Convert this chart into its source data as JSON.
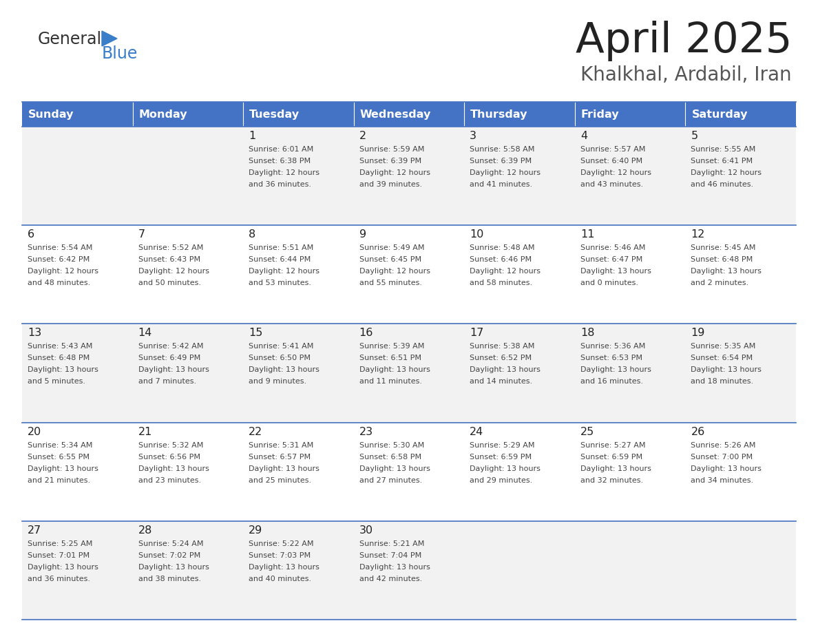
{
  "title": "April 2025",
  "subtitle": "Khalkhal, Ardabil, Iran",
  "header_bg": "#4472C4",
  "header_text_color": "#FFFFFF",
  "days_of_week": [
    "Sunday",
    "Monday",
    "Tuesday",
    "Wednesday",
    "Thursday",
    "Friday",
    "Saturday"
  ],
  "row_bg_odd": "#F2F2F2",
  "row_bg_even": "#FFFFFF",
  "cell_text_color": "#444444",
  "border_color": "#4472C4",
  "title_color": "#222222",
  "subtitle_color": "#555555",
  "calendar_data": [
    [
      {
        "day": "",
        "sunrise": "",
        "sunset": "",
        "daylight": ""
      },
      {
        "day": "",
        "sunrise": "",
        "sunset": "",
        "daylight": ""
      },
      {
        "day": "1",
        "sunrise": "6:01 AM",
        "sunset": "6:38 PM",
        "daylight": "12 hours and 36 minutes."
      },
      {
        "day": "2",
        "sunrise": "5:59 AM",
        "sunset": "6:39 PM",
        "daylight": "12 hours and 39 minutes."
      },
      {
        "day": "3",
        "sunrise": "5:58 AM",
        "sunset": "6:39 PM",
        "daylight": "12 hours and 41 minutes."
      },
      {
        "day": "4",
        "sunrise": "5:57 AM",
        "sunset": "6:40 PM",
        "daylight": "12 hours and 43 minutes."
      },
      {
        "day": "5",
        "sunrise": "5:55 AM",
        "sunset": "6:41 PM",
        "daylight": "12 hours and 46 minutes."
      }
    ],
    [
      {
        "day": "6",
        "sunrise": "5:54 AM",
        "sunset": "6:42 PM",
        "daylight": "12 hours and 48 minutes."
      },
      {
        "day": "7",
        "sunrise": "5:52 AM",
        "sunset": "6:43 PM",
        "daylight": "12 hours and 50 minutes."
      },
      {
        "day": "8",
        "sunrise": "5:51 AM",
        "sunset": "6:44 PM",
        "daylight": "12 hours and 53 minutes."
      },
      {
        "day": "9",
        "sunrise": "5:49 AM",
        "sunset": "6:45 PM",
        "daylight": "12 hours and 55 minutes."
      },
      {
        "day": "10",
        "sunrise": "5:48 AM",
        "sunset": "6:46 PM",
        "daylight": "12 hours and 58 minutes."
      },
      {
        "day": "11",
        "sunrise": "5:46 AM",
        "sunset": "6:47 PM",
        "daylight": "13 hours and 0 minutes."
      },
      {
        "day": "12",
        "sunrise": "5:45 AM",
        "sunset": "6:48 PM",
        "daylight": "13 hours and 2 minutes."
      }
    ],
    [
      {
        "day": "13",
        "sunrise": "5:43 AM",
        "sunset": "6:48 PM",
        "daylight": "13 hours and 5 minutes."
      },
      {
        "day": "14",
        "sunrise": "5:42 AM",
        "sunset": "6:49 PM",
        "daylight": "13 hours and 7 minutes."
      },
      {
        "day": "15",
        "sunrise": "5:41 AM",
        "sunset": "6:50 PM",
        "daylight": "13 hours and 9 minutes."
      },
      {
        "day": "16",
        "sunrise": "5:39 AM",
        "sunset": "6:51 PM",
        "daylight": "13 hours and 11 minutes."
      },
      {
        "day": "17",
        "sunrise": "5:38 AM",
        "sunset": "6:52 PM",
        "daylight": "13 hours and 14 minutes."
      },
      {
        "day": "18",
        "sunrise": "5:36 AM",
        "sunset": "6:53 PM",
        "daylight": "13 hours and 16 minutes."
      },
      {
        "day": "19",
        "sunrise": "5:35 AM",
        "sunset": "6:54 PM",
        "daylight": "13 hours and 18 minutes."
      }
    ],
    [
      {
        "day": "20",
        "sunrise": "5:34 AM",
        "sunset": "6:55 PM",
        "daylight": "13 hours and 21 minutes."
      },
      {
        "day": "21",
        "sunrise": "5:32 AM",
        "sunset": "6:56 PM",
        "daylight": "13 hours and 23 minutes."
      },
      {
        "day": "22",
        "sunrise": "5:31 AM",
        "sunset": "6:57 PM",
        "daylight": "13 hours and 25 minutes."
      },
      {
        "day": "23",
        "sunrise": "5:30 AM",
        "sunset": "6:58 PM",
        "daylight": "13 hours and 27 minutes."
      },
      {
        "day": "24",
        "sunrise": "5:29 AM",
        "sunset": "6:59 PM",
        "daylight": "13 hours and 29 minutes."
      },
      {
        "day": "25",
        "sunrise": "5:27 AM",
        "sunset": "6:59 PM",
        "daylight": "13 hours and 32 minutes."
      },
      {
        "day": "26",
        "sunrise": "5:26 AM",
        "sunset": "7:00 PM",
        "daylight": "13 hours and 34 minutes."
      }
    ],
    [
      {
        "day": "27",
        "sunrise": "5:25 AM",
        "sunset": "7:01 PM",
        "daylight": "13 hours and 36 minutes."
      },
      {
        "day": "28",
        "sunrise": "5:24 AM",
        "sunset": "7:02 PM",
        "daylight": "13 hours and 38 minutes."
      },
      {
        "day": "29",
        "sunrise": "5:22 AM",
        "sunset": "7:03 PM",
        "daylight": "13 hours and 40 minutes."
      },
      {
        "day": "30",
        "sunrise": "5:21 AM",
        "sunset": "7:04 PM",
        "daylight": "13 hours and 42 minutes."
      },
      {
        "day": "",
        "sunrise": "",
        "sunset": "",
        "daylight": ""
      },
      {
        "day": "",
        "sunrise": "",
        "sunset": "",
        "daylight": ""
      },
      {
        "day": "",
        "sunrise": "",
        "sunset": "",
        "daylight": ""
      }
    ]
  ]
}
